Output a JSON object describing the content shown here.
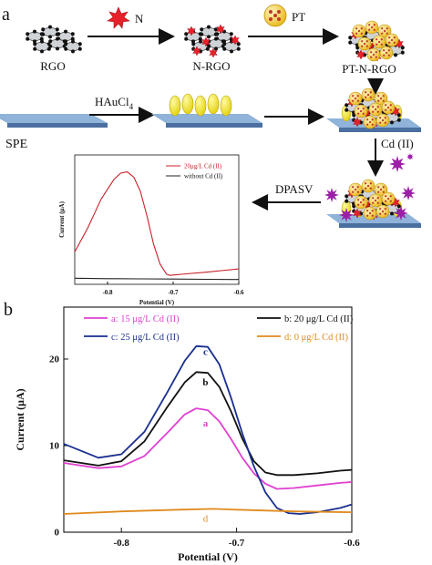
{
  "panel_a": {
    "letter": "a",
    "labels": {
      "rgo": "RGO",
      "n": "N",
      "n_rgo": "N-RGO",
      "pt": "PT",
      "pt_n_rgo": "PT-N-RGO",
      "spe": "SPE",
      "haucl4_main": "HAuCl",
      "haucl4_sub": "4",
      "cd": "Cd (II)",
      "dpasv": "DPASV"
    },
    "colors": {
      "graphene_sheet": "#cfd3d8",
      "nitrogen_star": "#e8202a",
      "pt_sphere": "#f4cf2a",
      "gold_oval": "#f2e51a",
      "cd_burst": "#9b1fa8",
      "electrode_top": "#8fb3d9",
      "electrode_side": "#4a6fa0"
    }
  },
  "panel_b": {
    "letter": "b"
  },
  "chart_data": [
    {
      "type": "line",
      "title": "",
      "xlabel": "Potential (V)",
      "ylabel": "Current (μA)",
      "xlim": [
        -0.85,
        -0.6
      ],
      "ylim": [
        0,
        32
      ],
      "x_ticks": [
        "-0.8",
        "-0.7",
        "-0.6"
      ],
      "y_ticks": [],
      "legend_position": "top-right",
      "series": [
        {
          "name": "20μg/L Cd (II)",
          "color": "#c8202a",
          "x": [
            -0.85,
            -0.83,
            -0.81,
            -0.79,
            -0.78,
            -0.77,
            -0.76,
            -0.75,
            -0.74,
            -0.73,
            -0.72,
            -0.71,
            -0.705,
            -0.7,
            -0.68,
            -0.65,
            -0.62,
            -0.6
          ],
          "y": [
            8,
            14,
            21,
            26,
            27.5,
            27.8,
            26.5,
            23,
            17,
            10,
            5,
            2.5,
            2.2,
            2.3,
            2.6,
            3.0,
            3.5,
            3.8
          ]
        },
        {
          "name": "without Cd (II)",
          "color": "#222222",
          "x": [
            -0.85,
            -0.8,
            -0.75,
            -0.7,
            -0.65,
            -0.6
          ],
          "y": [
            1.5,
            1.4,
            1.35,
            1.3,
            1.25,
            1.2
          ]
        }
      ]
    },
    {
      "type": "line",
      "title": "",
      "xlabel": "Potential (V)",
      "ylabel": "Current (μA)",
      "xlim": [
        -0.85,
        -0.6
      ],
      "ylim": [
        0,
        26
      ],
      "x_ticks": [
        "-0.8",
        "-0.7",
        "-0.6"
      ],
      "y_ticks": [
        "0",
        "10",
        "20"
      ],
      "legend_position": "top",
      "series": [
        {
          "name": "a: 15 μg/L Cd (II)",
          "letter": "a",
          "color": "#e040d0",
          "x": [
            -0.85,
            -0.82,
            -0.8,
            -0.78,
            -0.76,
            -0.745,
            -0.735,
            -0.725,
            -0.715,
            -0.705,
            -0.695,
            -0.685,
            -0.675,
            -0.665,
            -0.65,
            -0.63,
            -0.61,
            -0.6
          ],
          "y": [
            8.0,
            7.4,
            7.6,
            8.8,
            11.5,
            13.6,
            14.3,
            14.1,
            12.8,
            10.8,
            8.6,
            6.8,
            5.6,
            5.0,
            5.1,
            5.4,
            5.7,
            5.8
          ]
        },
        {
          "name": "b: 20 μg/L Cd (II)",
          "letter": "b",
          "color": "#111111",
          "x": [
            -0.85,
            -0.82,
            -0.8,
            -0.78,
            -0.76,
            -0.745,
            -0.735,
            -0.725,
            -0.715,
            -0.705,
            -0.695,
            -0.685,
            -0.675,
            -0.665,
            -0.65,
            -0.63,
            -0.61,
            -0.6
          ],
          "y": [
            8.3,
            7.7,
            8.2,
            10.5,
            14.5,
            17.3,
            18.5,
            18.4,
            16.8,
            14.0,
            10.8,
            8.2,
            6.9,
            6.6,
            6.6,
            6.8,
            7.1,
            7.2
          ]
        },
        {
          "name": "c: 25 μg/L Cd (II)",
          "letter": "c",
          "color": "#1a2f8f",
          "x": [
            -0.85,
            -0.82,
            -0.8,
            -0.78,
            -0.76,
            -0.745,
            -0.735,
            -0.725,
            -0.715,
            -0.705,
            -0.695,
            -0.685,
            -0.675,
            -0.665,
            -0.655,
            -0.645,
            -0.63,
            -0.61,
            -0.6
          ],
          "y": [
            10.2,
            8.6,
            9.0,
            11.6,
            16.2,
            19.8,
            21.5,
            21.4,
            19.4,
            15.6,
            11.4,
            7.6,
            4.6,
            2.8,
            2.2,
            2.1,
            2.3,
            2.8,
            3.2
          ]
        },
        {
          "name": "d:  0 μg/L Cd (II)",
          "letter": "d",
          "color": "#e08a1e",
          "x": [
            -0.85,
            -0.8,
            -0.75,
            -0.72,
            -0.7,
            -0.65,
            -0.6
          ],
          "y": [
            2.1,
            2.4,
            2.6,
            2.7,
            2.6,
            2.4,
            2.3
          ]
        }
      ]
    }
  ]
}
